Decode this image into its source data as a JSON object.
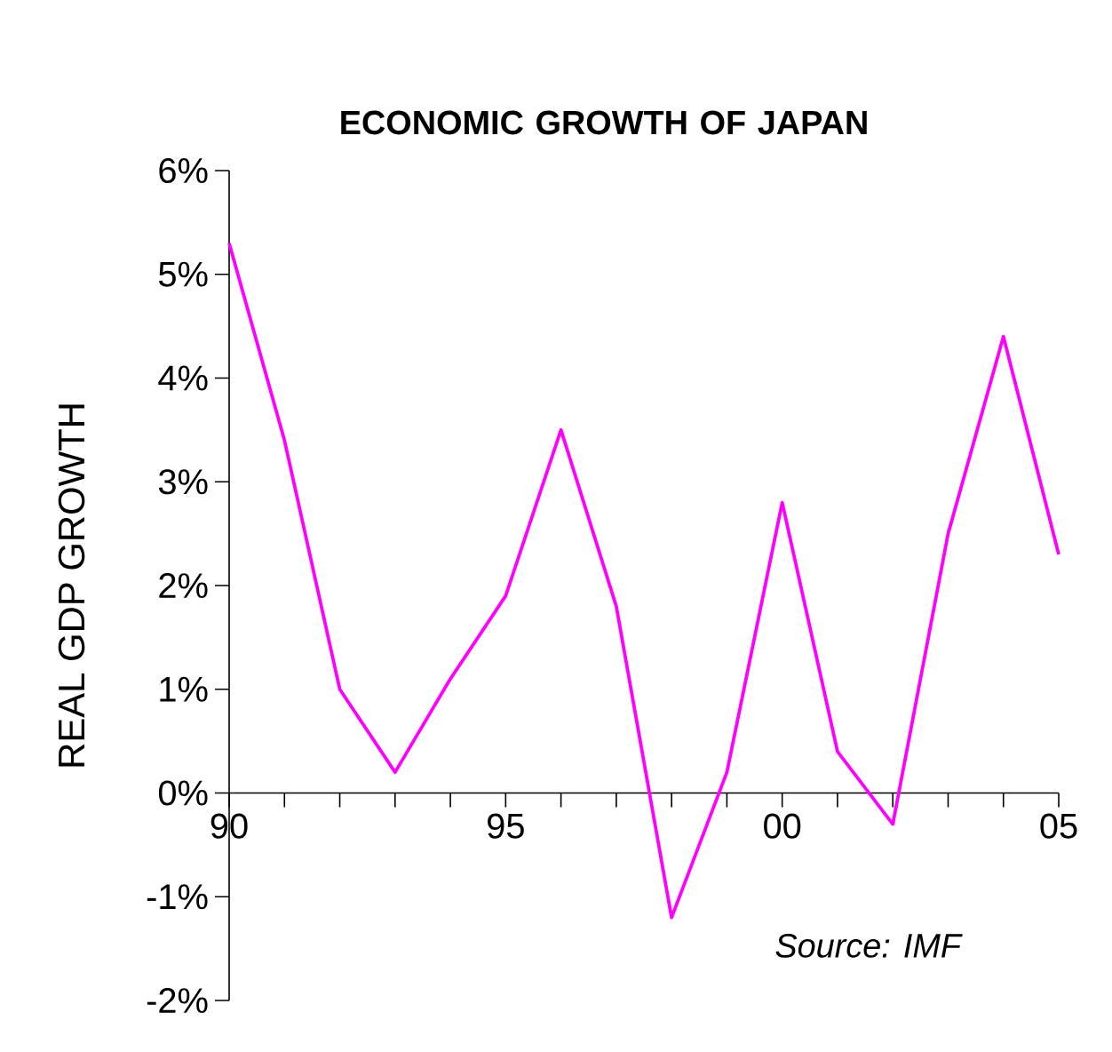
{
  "chart_data": {
    "type": "line",
    "title": "ECONOMIC GROWTH OF JAPAN",
    "ylabel": "REAL GDP GROWTH",
    "annotations": [
      "Source: IMF"
    ],
    "x": [
      1990,
      1991,
      1992,
      1993,
      1994,
      1995,
      1996,
      1997,
      1998,
      1999,
      2000,
      2001,
      2002,
      2003,
      2004,
      2005
    ],
    "series": [
      {
        "color": "#ff00ff",
        "values": [
          5.3,
          3.4,
          1.0,
          0.2,
          1.1,
          1.9,
          3.5,
          1.8,
          -1.2,
          0.2,
          2.8,
          0.4,
          -0.3,
          2.5,
          4.4,
          2.3
        ]
      }
    ],
    "xlim": [
      1990,
      2005
    ],
    "xticks": [
      {
        "value": 1990,
        "label": "90"
      },
      {
        "value": 1991,
        "label": null
      },
      {
        "value": 1992,
        "label": null
      },
      {
        "value": 1993,
        "label": null
      },
      {
        "value": 1994,
        "label": null
      },
      {
        "value": 1995,
        "label": "95"
      },
      {
        "value": 1996,
        "label": null
      },
      {
        "value": 1997,
        "label": null
      },
      {
        "value": 1998,
        "label": null
      },
      {
        "value": 1999,
        "label": null
      },
      {
        "value": 2000,
        "label": "00"
      },
      {
        "value": 2001,
        "label": null
      },
      {
        "value": 2002,
        "label": null
      },
      {
        "value": 2003,
        "label": null
      },
      {
        "value": 2004,
        "label": null
      },
      {
        "value": 2005,
        "label": "05"
      }
    ],
    "ylim": [
      -2,
      6
    ],
    "yticks": [
      {
        "value": -2,
        "label": "-2%"
      },
      {
        "value": -1,
        "label": "-1%"
      },
      {
        "value": 0,
        "label": "0%"
      },
      {
        "value": 1,
        "label": "1%"
      },
      {
        "value": 2,
        "label": "2%"
      },
      {
        "value": 3,
        "label": "3%"
      },
      {
        "value": 4,
        "label": "4%"
      },
      {
        "value": 5,
        "label": "5%"
      },
      {
        "value": 6,
        "label": "6%"
      }
    ]
  }
}
